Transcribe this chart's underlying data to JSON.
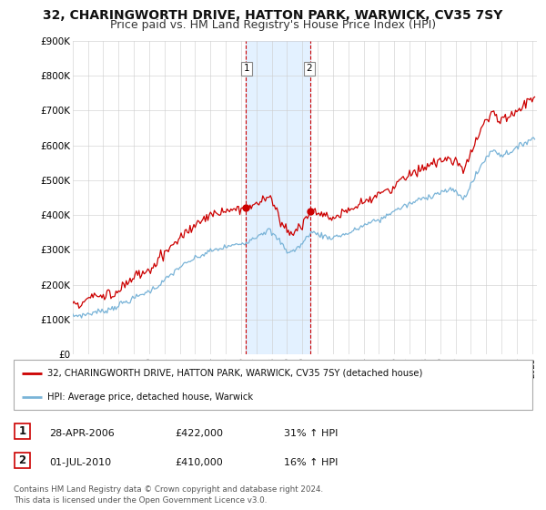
{
  "title": "32, CHARINGWORTH DRIVE, HATTON PARK, WARWICK, CV35 7SY",
  "subtitle": "Price paid vs. HM Land Registry's House Price Index (HPI)",
  "ylim": [
    0,
    900000
  ],
  "yticks": [
    0,
    100000,
    200000,
    300000,
    400000,
    500000,
    600000,
    700000,
    800000,
    900000
  ],
  "ytick_labels": [
    "£0",
    "£100K",
    "£200K",
    "£300K",
    "£400K",
    "£500K",
    "£600K",
    "£700K",
    "£800K",
    "£900K"
  ],
  "hpi_color": "#7ab4d8",
  "price_color": "#cc0000",
  "purchase1_date": 2006.32,
  "purchase1_price": 422000,
  "purchase2_date": 2010.5,
  "purchase2_price": 410000,
  "shade_color": "#ddeeff",
  "vline_color": "#cc0000",
  "legend_house_label": "32, CHARINGWORTH DRIVE, HATTON PARK, WARWICK, CV35 7SY (detached house)",
  "legend_hpi_label": "HPI: Average price, detached house, Warwick",
  "table_row1": [
    "1",
    "28-APR-2006",
    "£422,000",
    "31% ↑ HPI"
  ],
  "table_row2": [
    "2",
    "01-JUL-2010",
    "£410,000",
    "16% ↑ HPI"
  ],
  "footer": "Contains HM Land Registry data © Crown copyright and database right 2024.\nThis data is licensed under the Open Government Licence v3.0.",
  "background_color": "#ffffff",
  "grid_color": "#cccccc",
  "title_fontsize": 10,
  "subtitle_fontsize": 9
}
